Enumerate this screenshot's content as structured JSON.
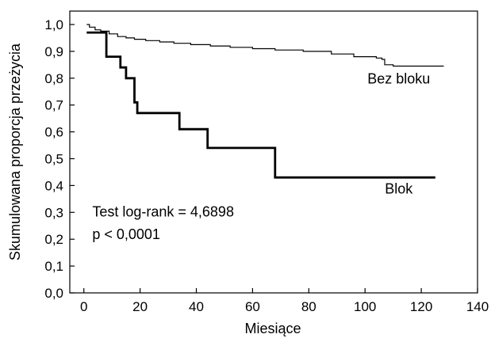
{
  "chart_data": {
    "type": "line",
    "xlabel": "Miesiące",
    "ylabel": "Skumulowana proporcja przeżycia",
    "xlim": [
      -5,
      140
    ],
    "ylim": [
      0,
      1.05
    ],
    "grid": false,
    "xticks": [
      0,
      20,
      40,
      60,
      80,
      100,
      120,
      140
    ],
    "xtick_labels": [
      "0",
      "20",
      "40",
      "60",
      "80",
      "100",
      "120",
      "140"
    ],
    "yticks": [
      0,
      0.1,
      0.2,
      0.3,
      0.4,
      0.5,
      0.6,
      0.7,
      0.8,
      0.9,
      1.0
    ],
    "ytick_labels": [
      "0,0",
      "0,1",
      "0,2",
      "0,3",
      "0,4",
      "0,5",
      "0,6",
      "0,7",
      "0,8",
      "0,9",
      "1,0"
    ],
    "series": [
      {
        "name": "Bez bloku",
        "line_width": 1.2,
        "x": [
          1,
          2,
          4,
          6,
          9,
          12,
          15,
          18,
          22,
          27,
          32,
          38,
          45,
          52,
          60,
          68,
          78,
          88,
          96,
          104,
          106,
          107,
          110,
          118,
          128
        ],
        "y": [
          1.0,
          0.99,
          0.98,
          0.975,
          0.965,
          0.955,
          0.95,
          0.945,
          0.94,
          0.935,
          0.93,
          0.925,
          0.92,
          0.915,
          0.91,
          0.905,
          0.9,
          0.89,
          0.88,
          0.875,
          0.87,
          0.85,
          0.845,
          0.845,
          0.845
        ]
      },
      {
        "name": "Blok",
        "line_width": 2.8,
        "x": [
          1,
          8,
          13,
          15,
          18,
          19,
          34,
          44,
          68,
          125
        ],
        "y": [
          0.97,
          0.88,
          0.84,
          0.8,
          0.71,
          0.67,
          0.61,
          0.54,
          0.43,
          0.43
        ]
      }
    ],
    "series_labels": [
      {
        "text": "Bez bloku",
        "x": 112,
        "y": 0.78
      },
      {
        "text": "Blok",
        "x": 112,
        "y": 0.37
      }
    ],
    "annotations": [
      {
        "text": "Test log-rank = 4,6898",
        "x": 3,
        "y": 0.285
      },
      {
        "text": "p < 0,0001",
        "x": 3,
        "y": 0.2
      }
    ]
  }
}
